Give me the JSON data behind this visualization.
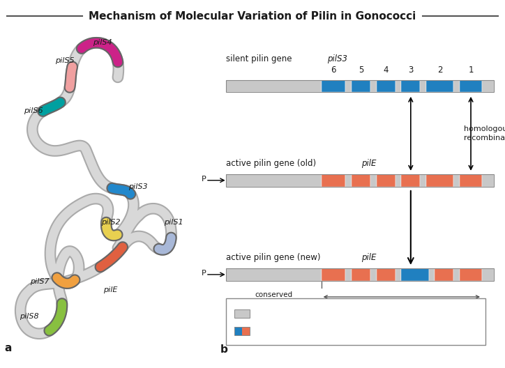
{
  "title": "Mechanism of Molecular Variation of Pilin in Gonococci",
  "bg_color": "#ffffff",
  "strand_color": "#d0d0d0",
  "strand_outline": "#aaaaaa",
  "gene_colors": {
    "pilS4": "#cc2288",
    "pilS5": "#f0a0a0",
    "pilS6": "#00a0a0",
    "pilS3": "#2288cc",
    "pilS2": "#e8d050",
    "pilS1": "#a8b8d8",
    "pilS7": "#f0a040",
    "pilE": "#e06040",
    "pilS8": "#88c040"
  },
  "bar_conserved": "#c8c8c8",
  "bar_blue": "#2080c0",
  "bar_orange": "#e87050",
  "panel_a": "a",
  "panel_b": "b"
}
